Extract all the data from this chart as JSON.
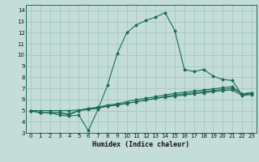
{
  "xlabel": "Humidex (Indice chaleur)",
  "xlim": [
    -0.5,
    23.5
  ],
  "ylim": [
    3,
    14.5
  ],
  "xticks": [
    0,
    1,
    2,
    3,
    4,
    5,
    6,
    7,
    8,
    9,
    10,
    11,
    12,
    13,
    14,
    15,
    16,
    17,
    18,
    19,
    20,
    21,
    22,
    23
  ],
  "yticks": [
    3,
    4,
    5,
    6,
    7,
    8,
    9,
    10,
    11,
    12,
    13,
    14
  ],
  "bg_color": "#c5ddd8",
  "line_color": "#1a6b5a",
  "grid_color": "#9fc4bc",
  "curves": [
    {
      "x": [
        0,
        1,
        2,
        3,
        4,
        5,
        6,
        7,
        8,
        9,
        10,
        11,
        12,
        13,
        14,
        15,
        16,
        17,
        18,
        19,
        20,
        21,
        22,
        23
      ],
      "y": [
        5.0,
        4.8,
        4.8,
        4.6,
        4.5,
        4.6,
        3.2,
        5.1,
        7.3,
        10.1,
        12.0,
        12.7,
        13.1,
        13.4,
        13.8,
        12.2,
        8.7,
        8.5,
        8.7,
        8.1,
        7.8,
        7.7,
        6.4,
        6.5
      ]
    },
    {
      "x": [
        0,
        1,
        2,
        3,
        4,
        5,
        6,
        7,
        8,
        9,
        10,
        11,
        12,
        13,
        14,
        15,
        16,
        17,
        18,
        19,
        20,
        21,
        22,
        23
      ],
      "y": [
        5.0,
        4.8,
        4.8,
        4.8,
        4.6,
        5.0,
        5.2,
        5.3,
        5.5,
        5.6,
        5.8,
        6.0,
        6.1,
        6.25,
        6.4,
        6.55,
        6.65,
        6.75,
        6.85,
        6.95,
        7.05,
        7.15,
        6.5,
        6.6
      ]
    },
    {
      "x": [
        0,
        1,
        2,
        3,
        4,
        5,
        6,
        7,
        8,
        9,
        10,
        11,
        12,
        13,
        14,
        15,
        16,
        17,
        18,
        19,
        20,
        21,
        22,
        23
      ],
      "y": [
        5.0,
        4.8,
        4.8,
        4.8,
        4.7,
        5.0,
        5.1,
        5.2,
        5.4,
        5.5,
        5.65,
        5.8,
        5.95,
        6.1,
        6.2,
        6.3,
        6.4,
        6.5,
        6.6,
        6.7,
        6.8,
        6.85,
        6.35,
        6.45
      ]
    },
    {
      "x": [
        0,
        1,
        2,
        3,
        4,
        5,
        6,
        7,
        8,
        9,
        10,
        11,
        12,
        13,
        14,
        15,
        16,
        17,
        18,
        19,
        20,
        21,
        22,
        23
      ],
      "y": [
        5.0,
        5.0,
        5.0,
        5.0,
        5.0,
        5.05,
        5.15,
        5.25,
        5.4,
        5.5,
        5.65,
        5.8,
        5.95,
        6.1,
        6.25,
        6.4,
        6.5,
        6.6,
        6.7,
        6.8,
        6.9,
        7.0,
        6.5,
        6.6
      ]
    }
  ]
}
